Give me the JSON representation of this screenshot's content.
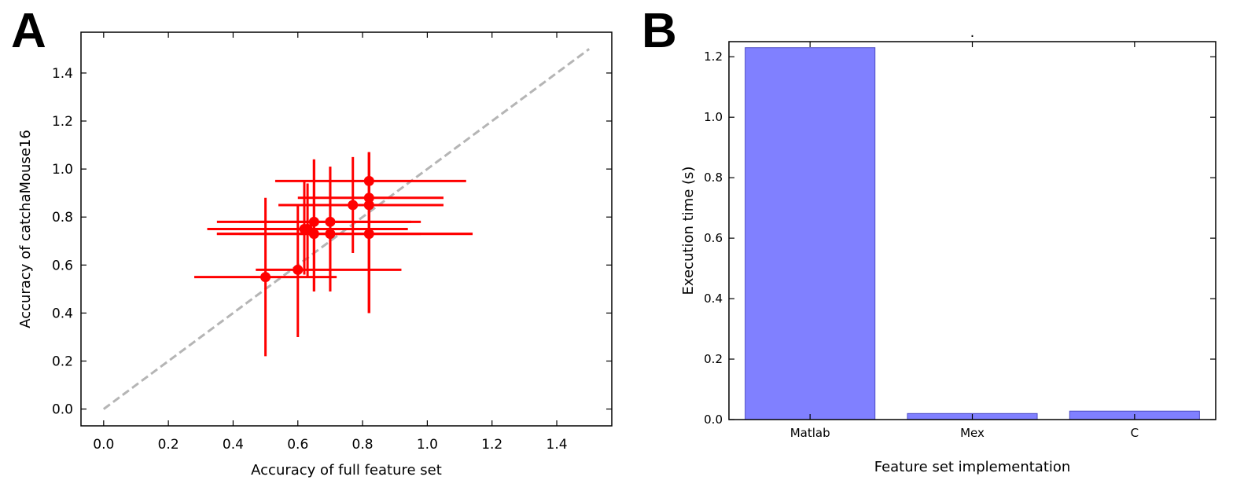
{
  "chart_data": [
    {
      "panel": "A",
      "type": "scatter",
      "title": "",
      "xlabel": "Accuracy of full feature set",
      "ylabel": "Accuracy of catchaMouse16",
      "xlim": [
        -0.07,
        1.57
      ],
      "ylim": [
        -0.07,
        1.57
      ],
      "xticks": [
        "0.0",
        "0.2",
        "0.4",
        "0.6",
        "0.8",
        "1.0",
        "1.2",
        "1.4"
      ],
      "yticks": [
        "0.0",
        "0.2",
        "0.4",
        "0.6",
        "0.8",
        "1.0",
        "1.2",
        "1.4"
      ],
      "grid": false,
      "colors": {
        "points": "#ff0000",
        "diagonal": "#b5b5b5"
      },
      "diagonal": {
        "x": [
          0.0,
          1.5
        ],
        "y": [
          0.0,
          1.5
        ],
        "style": "dashed"
      },
      "points": [
        {
          "x": 0.5,
          "y": 0.55,
          "xerr": [
            0.28,
            0.72
          ],
          "yerr": [
            0.22,
            0.88
          ]
        },
        {
          "x": 0.6,
          "y": 0.58,
          "xerr": [
            0.47,
            0.92
          ],
          "yerr": [
            0.3,
            0.85
          ]
        },
        {
          "x": 0.62,
          "y": 0.75,
          "xerr": [
            0.35,
            0.94
          ],
          "yerr": [
            0.56,
            0.95
          ]
        },
        {
          "x": 0.63,
          "y": 0.75,
          "xerr": [
            0.32,
            0.92
          ],
          "yerr": [
            0.55,
            0.94
          ]
        },
        {
          "x": 0.65,
          "y": 0.78,
          "xerr": [
            0.35,
            0.95
          ],
          "yerr": [
            0.49,
            1.04
          ]
        },
        {
          "x": 0.65,
          "y": 0.73,
          "xerr": [
            0.35,
            1.14
          ],
          "yerr": [
            0.49,
            1.04
          ]
        },
        {
          "x": 0.7,
          "y": 0.78,
          "xerr": [
            0.42,
            0.98
          ],
          "yerr": [
            0.49,
            1.01
          ]
        },
        {
          "x": 0.7,
          "y": 0.73,
          "xerr": [
            0.42,
            0.98
          ],
          "yerr": [
            0.49,
            1.01
          ]
        },
        {
          "x": 0.77,
          "y": 0.85,
          "xerr": [
            0.54,
            1.05
          ],
          "yerr": [
            0.65,
            1.05
          ]
        },
        {
          "x": 0.82,
          "y": 0.95,
          "xerr": [
            0.53,
            1.12
          ],
          "yerr": [
            0.4,
            1.07
          ]
        },
        {
          "x": 0.82,
          "y": 0.88,
          "xerr": [
            0.6,
            1.05
          ],
          "yerr": [
            0.4,
            1.07
          ]
        },
        {
          "x": 0.82,
          "y": 0.85,
          "xerr": [
            0.6,
            1.05
          ],
          "yerr": [
            0.4,
            1.07
          ]
        },
        {
          "x": 0.82,
          "y": 0.73,
          "xerr": [
            0.35,
            1.14
          ],
          "yerr": [
            0.4,
            1.07
          ]
        }
      ]
    },
    {
      "panel": "B",
      "type": "bar",
      "title": ".",
      "xlabel": "Feature set implementation",
      "ylabel": "Execution time (s)",
      "categories": [
        "Matlab",
        "Mex",
        "C"
      ],
      "values": [
        1.23,
        0.02,
        0.028
      ],
      "ylim": [
        0.0,
        1.25
      ],
      "yticks": [
        "0.0",
        "0.2",
        "0.4",
        "0.6",
        "0.8",
        "1.0",
        "1.2"
      ],
      "grid": false,
      "colors": {
        "bar_fill": "#8080ff",
        "bar_edge": "#4b4bc4"
      }
    }
  ]
}
